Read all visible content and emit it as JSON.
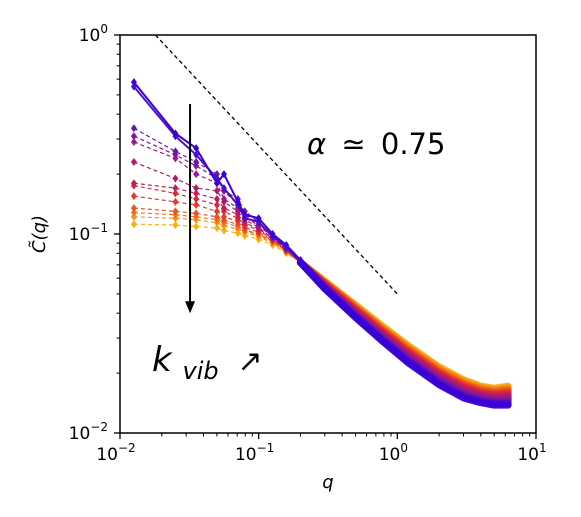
{
  "chart_data": {
    "type": "line",
    "title": "",
    "xlabel": "q",
    "ylabel": "C̃(q)",
    "xscale": "log",
    "yscale": "log",
    "xlim": [
      0.01,
      10
    ],
    "ylim": [
      0.01,
      1
    ],
    "x_ticks": [
      {
        "base": "10",
        "exp": "−2",
        "value": 0.01
      },
      {
        "base": "10",
        "exp": "−1",
        "value": 0.1
      },
      {
        "base": "10",
        "exp": "0",
        "value": 1
      },
      {
        "base": "10",
        "exp": "1",
        "value": 10
      }
    ],
    "y_ticks": [
      {
        "base": "10",
        "exp": "−2",
        "value": 0.01
      },
      {
        "base": "10",
        "exp": "−1",
        "value": 0.1
      },
      {
        "base": "10",
        "exp": "0",
        "value": 1
      }
    ],
    "grid": false,
    "legend": "none",
    "series": [
      {
        "color": "#3a00d6",
        "values": [
          0.58,
          0.32,
          0.27,
          0.18,
          0.2,
          0.145,
          0.125,
          0.12,
          0.1,
          0.088,
          0.074
        ]
      },
      {
        "color": "#4b0fc8",
        "values": [
          0.55,
          0.31,
          0.25,
          0.19,
          0.17,
          0.14,
          0.12,
          0.115,
          0.097,
          0.086,
          0.073
        ]
      },
      {
        "color": "#6a14a8",
        "values": [
          0.34,
          0.26,
          0.23,
          0.2,
          0.165,
          0.15,
          0.13,
          0.115,
          0.097,
          0.085,
          0.072
        ]
      },
      {
        "color": "#86169a",
        "values": [
          0.31,
          0.25,
          0.22,
          0.19,
          0.165,
          0.14,
          0.125,
          0.112,
          0.097,
          0.085,
          0.072
        ]
      },
      {
        "color": "#9c1a84",
        "values": [
          0.29,
          0.24,
          0.2,
          0.18,
          0.15,
          0.135,
          0.122,
          0.11,
          0.097,
          0.085,
          0.072
        ]
      },
      {
        "color": "#b01c6c",
        "values": [
          0.23,
          0.19,
          0.17,
          0.165,
          0.145,
          0.13,
          0.118,
          0.108,
          0.095,
          0.084,
          0.072
        ]
      },
      {
        "color": "#c21f55",
        "values": [
          0.18,
          0.17,
          0.16,
          0.15,
          0.135,
          0.125,
          0.114,
          0.106,
          0.095,
          0.084,
          0.072
        ]
      },
      {
        "color": "#d42a3c",
        "values": [
          0.175,
          0.16,
          0.15,
          0.14,
          0.13,
          0.12,
          0.112,
          0.104,
          0.094,
          0.083,
          0.072
        ]
      },
      {
        "color": "#e23a2b",
        "values": [
          0.155,
          0.145,
          0.14,
          0.13,
          0.122,
          0.116,
          0.108,
          0.102,
          0.093,
          0.083,
          0.072
        ]
      },
      {
        "color": "#ec5520",
        "values": [
          0.135,
          0.13,
          0.127,
          0.122,
          0.117,
          0.112,
          0.105,
          0.1,
          0.092,
          0.082,
          0.072
        ]
      },
      {
        "color": "#f37417",
        "values": [
          0.128,
          0.125,
          0.122,
          0.118,
          0.114,
          0.109,
          0.104,
          0.099,
          0.091,
          0.082,
          0.072
        ]
      },
      {
        "color": "#f89410",
        "values": [
          0.122,
          0.12,
          0.118,
          0.114,
          0.11,
          0.106,
          0.102,
          0.097,
          0.09,
          0.081,
          0.072
        ]
      },
      {
        "color": "#fbb00c",
        "values": [
          0.112,
          0.111,
          0.109,
          0.107,
          0.104,
          0.101,
          0.098,
          0.094,
          0.088,
          0.08,
          0.072
        ]
      }
    ],
    "x_low": [
      0.0126,
      0.0251,
      0.0354,
      0.05,
      0.0562,
      0.0708,
      0.0794,
      0.1,
      0.126,
      0.158,
      0.2
    ],
    "tail_x": [
      0.2,
      0.3,
      0.5,
      0.8,
      1.2,
      2.0,
      3.0,
      4.0,
      5.0,
      6.3
    ],
    "tail_blue": [
      0.072,
      0.053,
      0.038,
      0.0285,
      0.0225,
      0.0175,
      0.015,
      0.0142,
      0.0138,
      0.0138
    ],
    "tail_orange": [
      0.072,
      0.058,
      0.044,
      0.034,
      0.0275,
      0.0215,
      0.0185,
      0.0172,
      0.0168,
      0.0172
    ],
    "reference_line": {
      "x": [
        0.018,
        1.0
      ],
      "y": [
        1.0,
        0.05
      ],
      "style": "dashed",
      "color": "#000000"
    },
    "annotation_alpha": {
      "lead": "α",
      "rel": "≃",
      "value": "0.75"
    },
    "annotation_k": {
      "base": "k",
      "sub": "vib",
      "arrow": "↗"
    },
    "arrow": {
      "x": 0.032,
      "y_from": 0.45,
      "y_to": 0.04,
      "meaning": "decreasing with k_vib"
    }
  }
}
